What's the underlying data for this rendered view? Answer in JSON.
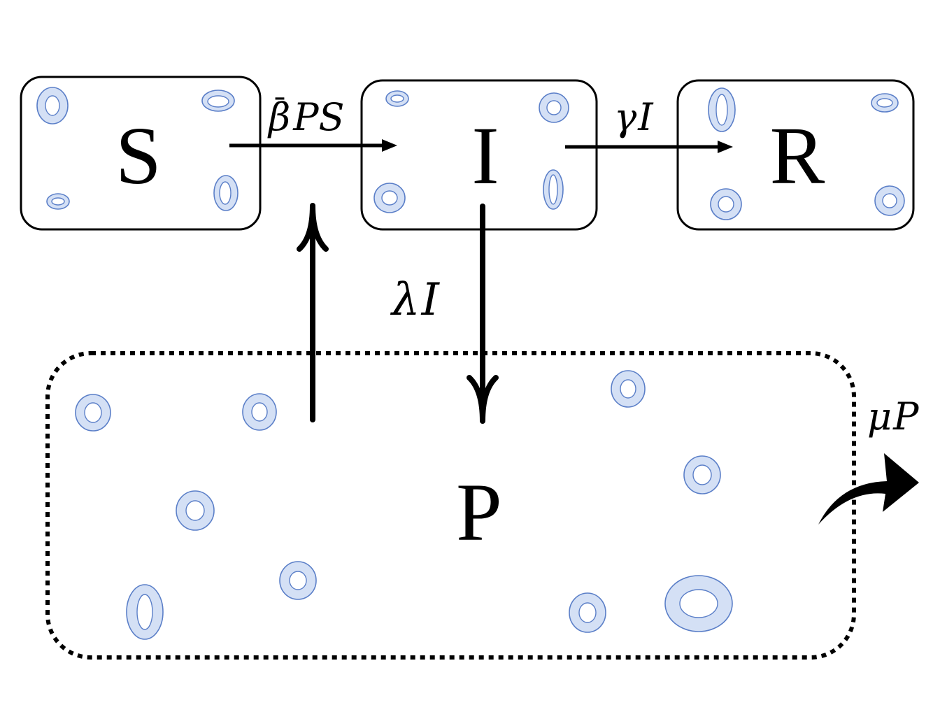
{
  "compartments": {
    "s": {
      "label": "S"
    },
    "i": {
      "label": "I"
    },
    "r": {
      "label": "R"
    },
    "p": {
      "label": "P"
    }
  },
  "rates": {
    "s_to_i": {
      "main": "PS",
      "symbol": "β",
      "bar": "¯"
    },
    "i_to_r": {
      "greek": "γ",
      "var": "I"
    },
    "i_to_p": {
      "greek": "λ",
      "var": "I"
    },
    "p_decay": {
      "greek": "μ",
      "var": "P"
    }
  },
  "colors": {
    "cell_fill": "#d4e0f5",
    "cell_stroke": "#5b7fc8",
    "line": "#000000"
  }
}
